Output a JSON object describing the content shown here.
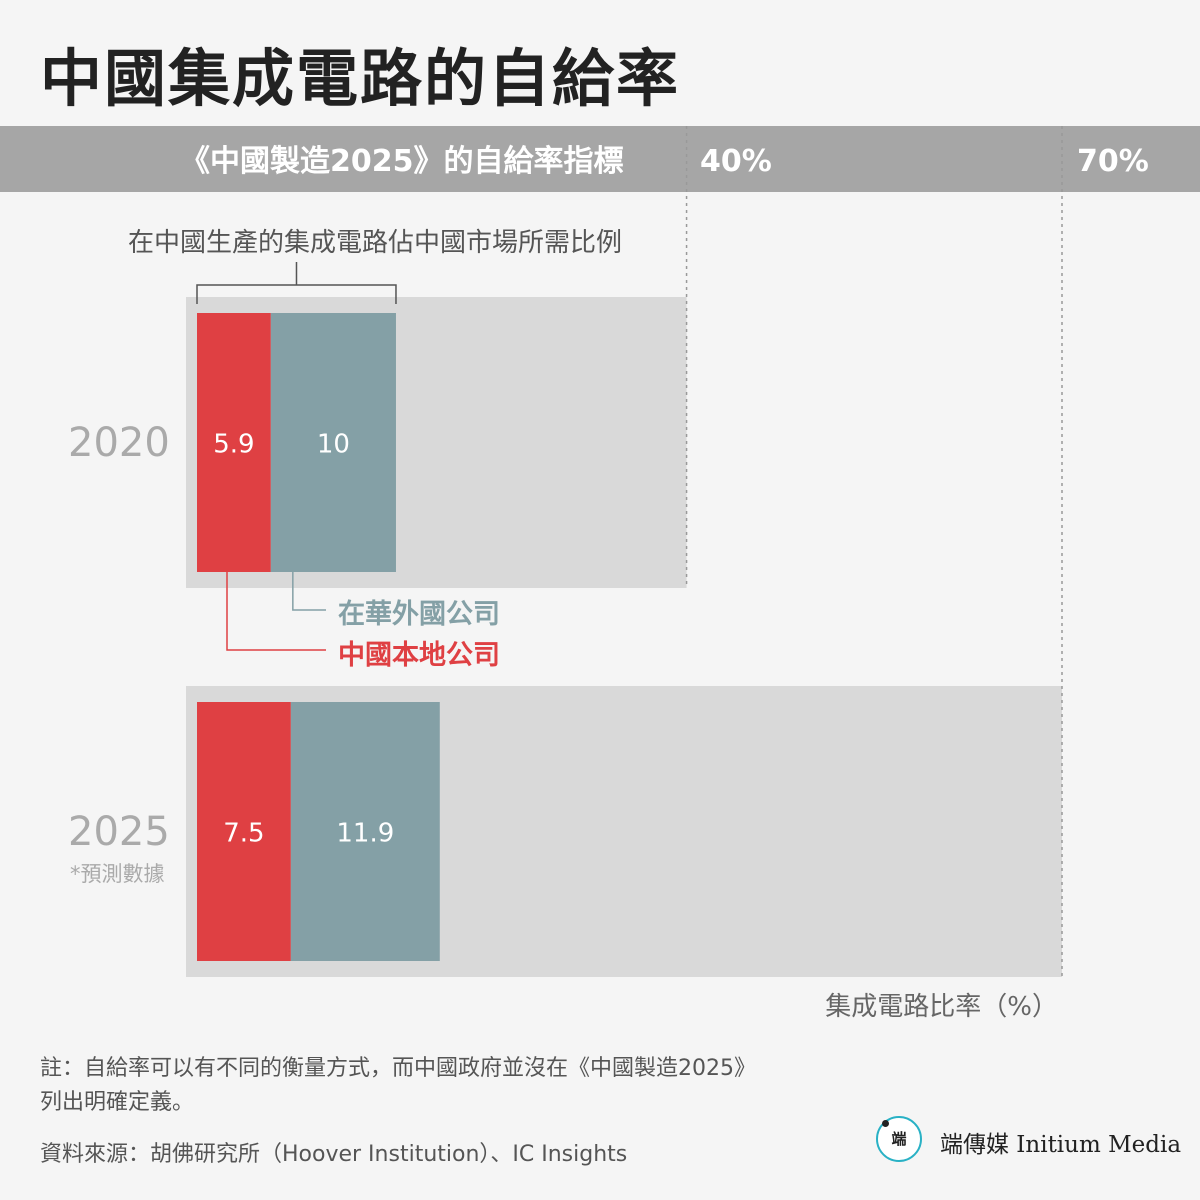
{
  "title": "中國集成電路的自給率",
  "target_band": {
    "label": "《中國製造2025》的自給率指標",
    "targets": [
      "40%",
      "70%"
    ]
  },
  "bracket_label": "在中國生產的集成電路佔中國市場所需比例",
  "axis_label": "集成電路比率（%）",
  "forecast_note": "*預測數據",
  "legend": {
    "foreign": "在華外國公司",
    "local": "中國本地公司"
  },
  "footnote": {
    "note_line1": "註：自給率可以有不同的衡量方式，而中國政府並沒在《中國製造2025》",
    "note_line2": "列出明確定義。",
    "source": "資料來源：胡佛研究所（Hoover Institution）、IC Insights"
  },
  "brand": {
    "logo_glyph": "端",
    "name": "端傳媒 Initium Media"
  },
  "colors": {
    "local": "#df4043",
    "foreign": "#84a0a6",
    "target_bg": "#d9d9d9",
    "band": "#a6a6a6"
  },
  "chart_data": {
    "type": "bar",
    "orientation": "horizontal",
    "stacked": true,
    "categories": [
      "2020",
      "2025"
    ],
    "series": [
      {
        "name": "中國本地公司",
        "values": [
          5.9,
          7.5
        ]
      },
      {
        "name": "在華外國公司",
        "values": [
          10,
          11.9
        ]
      }
    ],
    "targets": [
      40,
      70
    ],
    "xlabel": "集成電路比率（%）",
    "grid": false
  }
}
